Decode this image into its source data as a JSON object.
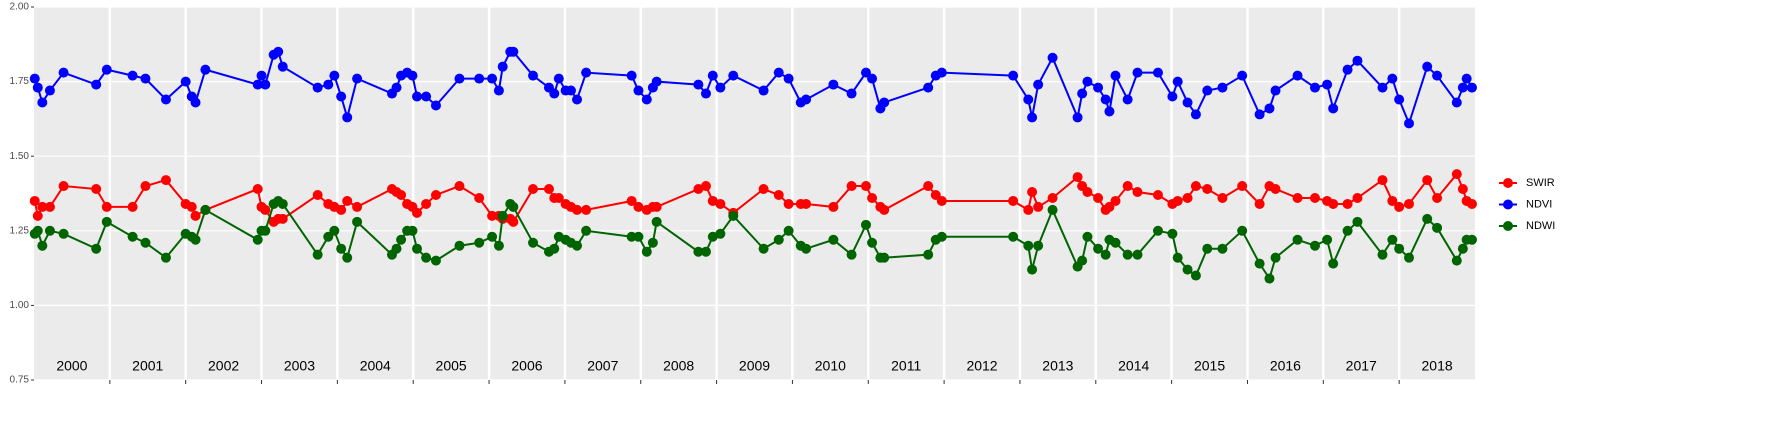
{
  "chart_data": {
    "type": "line",
    "x": [
      2000.01,
      2000.05,
      2000.11,
      2000.21,
      2000.39,
      2000.82,
      2000.96,
      2001.3,
      2001.47,
      2001.74,
      2002.0,
      2002.08,
      2002.13,
      2002.26,
      2002.95,
      2003.0,
      2003.05,
      2003.16,
      2003.22,
      2003.28,
      2003.74,
      2003.88,
      2003.96,
      2004.05,
      2004.13,
      2004.26,
      2004.72,
      2004.78,
      2004.84,
      2004.92,
      2004.99,
      2005.05,
      2005.17,
      2005.3,
      2005.61,
      2005.87,
      2006.04,
      2006.13,
      2006.18,
      2006.28,
      2006.32,
      2006.58,
      2006.79,
      2006.86,
      2006.92,
      2007.01,
      2007.08,
      2007.16,
      2007.28,
      2007.88,
      2007.97,
      2008.08,
      2008.16,
      2008.21,
      2008.76,
      2008.86,
      2008.95,
      2009.05,
      2009.22,
      2009.62,
      2009.82,
      2009.95,
      2010.11,
      2010.18,
      2010.54,
      2010.78,
      2010.97,
      2011.05,
      2011.16,
      2011.21,
      2011.79,
      2011.89,
      2011.97,
      2012.91,
      2013.11,
      2013.16,
      2013.24,
      2013.43,
      2013.76,
      2013.82,
      2013.89,
      2014.03,
      2014.13,
      2014.18,
      2014.26,
      2014.42,
      2014.55,
      2014.82,
      2015.01,
      2015.08,
      2015.21,
      2015.32,
      2015.47,
      2015.67,
      2015.93,
      2016.16,
      2016.29,
      2016.37,
      2016.66,
      2016.89,
      2017.05,
      2017.13,
      2017.32,
      2017.45,
      2017.78,
      2017.91,
      2018.0,
      2018.13,
      2018.37,
      2018.5,
      2018.76,
      2018.84,
      2018.89,
      2018.96
    ],
    "series": [
      {
        "name": "SWIR",
        "color": "#ff0000",
        "values": [
          1.35,
          1.3,
          1.33,
          1.33,
          1.4,
          1.39,
          1.33,
          1.33,
          1.4,
          1.42,
          1.34,
          1.33,
          1.3,
          1.32,
          1.39,
          1.33,
          1.32,
          1.28,
          1.29,
          1.29,
          1.37,
          1.34,
          1.33,
          1.32,
          1.35,
          1.33,
          1.39,
          1.38,
          1.37,
          1.34,
          1.33,
          1.31,
          1.34,
          1.37,
          1.4,
          1.36,
          1.3,
          1.3,
          1.29,
          1.29,
          1.28,
          1.39,
          1.39,
          1.36,
          1.36,
          1.34,
          1.33,
          1.32,
          1.32,
          1.35,
          1.33,
          1.32,
          1.33,
          1.33,
          1.39,
          1.4,
          1.35,
          1.34,
          1.31,
          1.39,
          1.37,
          1.34,
          1.34,
          1.34,
          1.33,
          1.4,
          1.4,
          1.36,
          1.33,
          1.32,
          1.4,
          1.37,
          1.35,
          1.35,
          1.32,
          1.38,
          1.33,
          1.36,
          1.43,
          1.4,
          1.38,
          1.36,
          1.32,
          1.33,
          1.35,
          1.4,
          1.38,
          1.37,
          1.34,
          1.35,
          1.36,
          1.4,
          1.39,
          1.36,
          1.4,
          1.34,
          1.4,
          1.39,
          1.36,
          1.36,
          1.35,
          1.34,
          1.34,
          1.36,
          1.42,
          1.35,
          1.33,
          1.34,
          1.42,
          1.36,
          1.44,
          1.39,
          1.35,
          1.34
        ]
      },
      {
        "name": "NDVI",
        "color": "#0000ff",
        "values": [
          1.76,
          1.73,
          1.68,
          1.72,
          1.78,
          1.74,
          1.79,
          1.77,
          1.76,
          1.69,
          1.75,
          1.7,
          1.68,
          1.79,
          1.74,
          1.77,
          1.74,
          1.84,
          1.85,
          1.8,
          1.73,
          1.74,
          1.77,
          1.7,
          1.63,
          1.76,
          1.71,
          1.73,
          1.77,
          1.78,
          1.77,
          1.7,
          1.7,
          1.67,
          1.76,
          1.76,
          1.76,
          1.72,
          1.8,
          1.85,
          1.85,
          1.77,
          1.73,
          1.71,
          1.76,
          1.72,
          1.72,
          1.69,
          1.78,
          1.77,
          1.72,
          1.69,
          1.73,
          1.75,
          1.74,
          1.71,
          1.77,
          1.73,
          1.77,
          1.72,
          1.78,
          1.76,
          1.68,
          1.69,
          1.74,
          1.71,
          1.78,
          1.76,
          1.66,
          1.68,
          1.73,
          1.77,
          1.78,
          1.77,
          1.69,
          1.63,
          1.74,
          1.83,
          1.63,
          1.71,
          1.75,
          1.73,
          1.69,
          1.65,
          1.77,
          1.69,
          1.78,
          1.78,
          1.7,
          1.75,
          1.68,
          1.64,
          1.72,
          1.73,
          1.77,
          1.64,
          1.66,
          1.72,
          1.77,
          1.73,
          1.74,
          1.66,
          1.79,
          1.82,
          1.73,
          1.76,
          1.69,
          1.61,
          1.8,
          1.77,
          1.68,
          1.73,
          1.76,
          1.73
        ]
      },
      {
        "name": "NDWI",
        "color": "#006400",
        "values": [
          1.24,
          1.25,
          1.2,
          1.25,
          1.24,
          1.19,
          1.28,
          1.23,
          1.21,
          1.16,
          1.24,
          1.23,
          1.22,
          1.32,
          1.22,
          1.25,
          1.25,
          1.34,
          1.35,
          1.34,
          1.17,
          1.23,
          1.25,
          1.19,
          1.16,
          1.28,
          1.17,
          1.19,
          1.22,
          1.25,
          1.25,
          1.19,
          1.16,
          1.15,
          1.2,
          1.21,
          1.23,
          1.2,
          1.3,
          1.34,
          1.33,
          1.21,
          1.18,
          1.19,
          1.23,
          1.22,
          1.21,
          1.2,
          1.25,
          1.23,
          1.23,
          1.18,
          1.21,
          1.28,
          1.18,
          1.18,
          1.23,
          1.24,
          1.3,
          1.19,
          1.22,
          1.25,
          1.2,
          1.19,
          1.22,
          1.17,
          1.27,
          1.21,
          1.16,
          1.16,
          1.17,
          1.22,
          1.23,
          1.23,
          1.2,
          1.12,
          1.2,
          1.32,
          1.13,
          1.15,
          1.23,
          1.19,
          1.17,
          1.22,
          1.21,
          1.17,
          1.17,
          1.25,
          1.24,
          1.16,
          1.12,
          1.1,
          1.19,
          1.19,
          1.25,
          1.14,
          1.09,
          1.16,
          1.22,
          1.2,
          1.22,
          1.14,
          1.25,
          1.28,
          1.17,
          1.22,
          1.19,
          1.16,
          1.29,
          1.26,
          1.15,
          1.19,
          1.22,
          1.22
        ]
      }
    ],
    "xlim": [
      2000,
      2019
    ],
    "xticks": [
      2001,
      2002,
      2003,
      2004,
      2005,
      2006,
      2007,
      2008,
      2009,
      2010,
      2011,
      2012,
      2013,
      2014,
      2015,
      2016,
      2017,
      2018
    ],
    "year_labels": [
      2000,
      2001,
      2002,
      2003,
      2004,
      2005,
      2006,
      2007,
      2008,
      2009,
      2010,
      2011,
      2012,
      2013,
      2014,
      2015,
      2016,
      2017,
      2018
    ],
    "ylim": [
      0.75,
      2.0
    ],
    "yticks": [
      {
        "value": 0.75,
        "label": "0.75"
      },
      {
        "value": 1.0,
        "label": "1.00"
      },
      {
        "value": 1.25,
        "label": "1.25"
      },
      {
        "value": 1.5,
        "label": "1.50"
      },
      {
        "value": 1.75,
        "label": "1.75"
      },
      {
        "value": 2.0,
        "label": "2.00"
      }
    ],
    "grid": true,
    "legend": "right"
  }
}
